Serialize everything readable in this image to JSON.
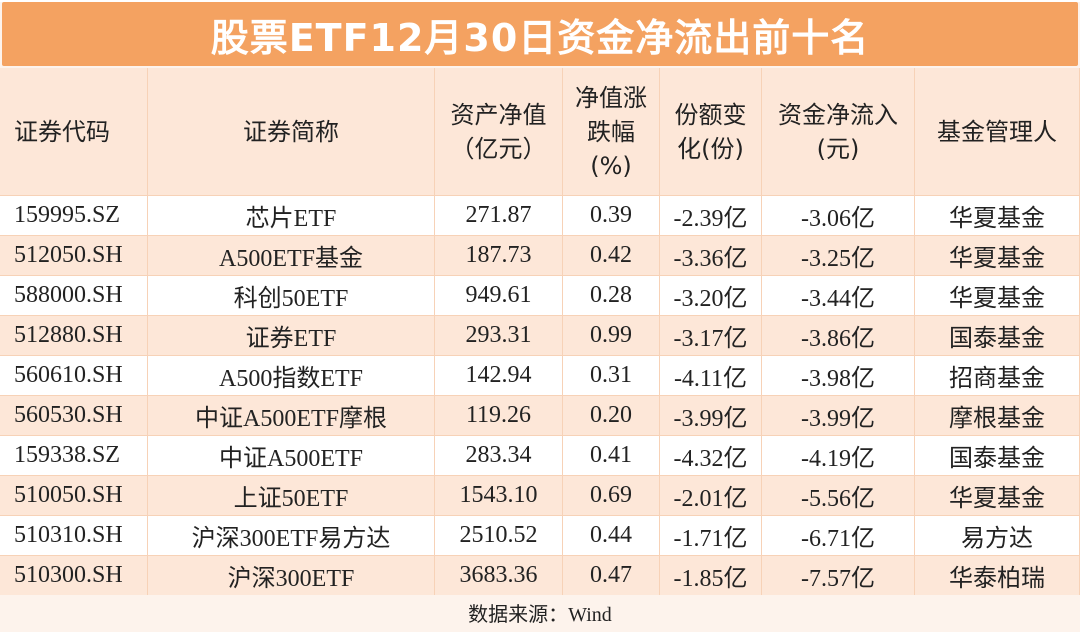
{
  "header": {
    "title": "股票ETF12月30日资金净流出前十名"
  },
  "table": {
    "columns": [
      [
        "证券代码"
      ],
      [
        "证券简称"
      ],
      [
        "资产净值",
        "（亿元）"
      ],
      [
        "净值涨",
        "跌幅",
        "(%)"
      ],
      [
        "份额变",
        "化(份)"
      ],
      [
        "资金净流入",
        "(元)"
      ],
      [
        "基金管理人"
      ]
    ],
    "rows": [
      [
        "159995.SZ",
        "芯片ETF",
        "271.87",
        "0.39",
        "-2.39亿",
        "-3.06亿",
        "华夏基金"
      ],
      [
        "512050.SH",
        "A500ETF基金",
        "187.73",
        "0.42",
        "-3.36亿",
        "-3.25亿",
        "华夏基金"
      ],
      [
        "588000.SH",
        "科创50ETF",
        "949.61",
        "0.28",
        "-3.20亿",
        "-3.44亿",
        "华夏基金"
      ],
      [
        "512880.SH",
        "证券ETF",
        "293.31",
        "0.99",
        "-3.17亿",
        "-3.86亿",
        "国泰基金"
      ],
      [
        "560610.SH",
        "A500指数ETF",
        "142.94",
        "0.31",
        "-4.11亿",
        "-3.98亿",
        "招商基金"
      ],
      [
        "560530.SH",
        "中证A500ETF摩根",
        "119.26",
        "0.20",
        "-3.99亿",
        "-3.99亿",
        "摩根基金"
      ],
      [
        "159338.SZ",
        "中证A500ETF",
        "283.34",
        "0.41",
        "-4.32亿",
        "-4.19亿",
        "国泰基金"
      ],
      [
        "510050.SH",
        "上证50ETF",
        "1543.10",
        "0.69",
        "-2.01亿",
        "-5.56亿",
        "华夏基金"
      ],
      [
        "510310.SH",
        "沪深300ETF易方达",
        "2510.52",
        "0.44",
        "-1.71亿",
        "-6.71亿",
        "易方达"
      ],
      [
        "510300.SH",
        "沪深300ETF",
        "3683.36",
        "0.47",
        "-1.85亿",
        "-7.57亿",
        "华泰柏瑞"
      ]
    ]
  },
  "footer": {
    "source": "数据来源：Wind"
  }
}
